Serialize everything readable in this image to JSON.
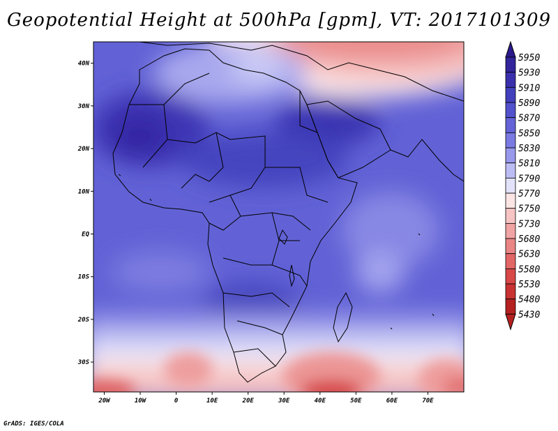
{
  "title": "Geopotential Height at 500hPa [gpm], VT: 2017101309",
  "footer": "GrADS: IGES/COLA",
  "map": {
    "lon_range": [
      -23,
      80
    ],
    "lat_range": [
      -37,
      45
    ],
    "x_ticks": [
      "20W",
      "10W",
      "0",
      "10E",
      "20E",
      "30E",
      "40E",
      "50E",
      "60E",
      "70E"
    ],
    "y_ticks": [
      "40N",
      "30N",
      "20N",
      "10N",
      "EQ",
      "10S",
      "20S",
      "30S"
    ]
  },
  "colorbar": {
    "levels": [
      "5950",
      "5930",
      "5910",
      "5890",
      "5870",
      "5850",
      "5830",
      "5810",
      "5790",
      "5770",
      "5750",
      "5730",
      "5680",
      "5630",
      "5580",
      "5530",
      "5480",
      "5430"
    ],
    "colors": [
      "#2b1a8a",
      "#33259c",
      "#3a30ad",
      "#4240bd",
      "#5252cc",
      "#6464d8",
      "#7a7ae2",
      "#9898ec",
      "#bdbdf5",
      "#e2e2fb",
      "#fde5e5",
      "#f7c4c4",
      "#f1a4a4",
      "#ea8585",
      "#e26666",
      "#d84848",
      "#c93232",
      "#b52121"
    ]
  }
}
